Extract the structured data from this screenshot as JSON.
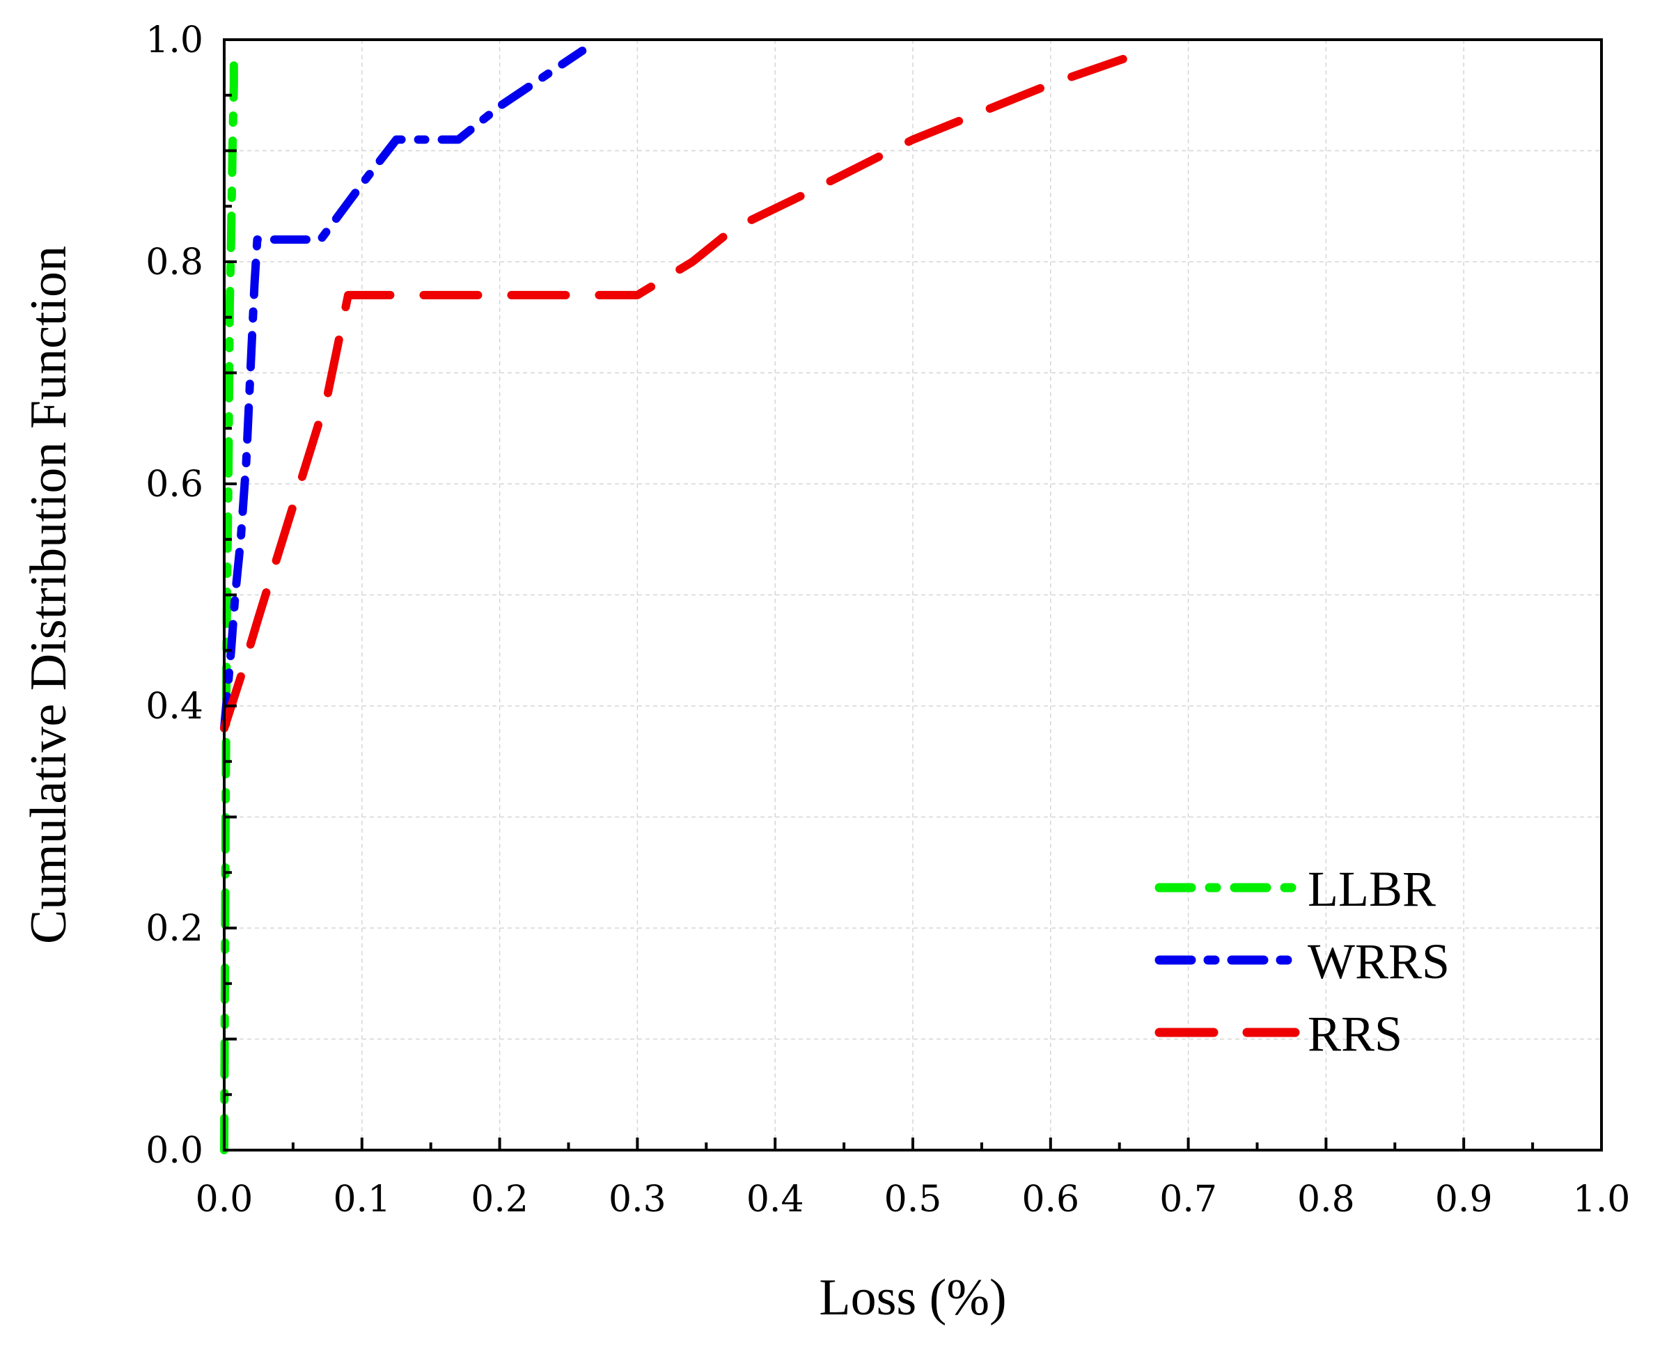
{
  "chart_data": {
    "type": "line",
    "title": "",
    "xlabel": "Loss (%)",
    "ylabel": "Cumulative Distribution Function",
    "xlim": [
      0.0,
      1.0
    ],
    "ylim": [
      0.0,
      1.0
    ],
    "x_ticks": [
      "0.0",
      "0.1",
      "0.2",
      "0.3",
      "0.4",
      "0.5",
      "0.6",
      "0.7",
      "0.8",
      "0.9",
      "1.0"
    ],
    "y_ticks": [
      "0.0",
      "0.2",
      "0.4",
      "0.6",
      "0.8",
      "1.0"
    ],
    "grid": true,
    "legend_position": "bottom-right",
    "series": [
      {
        "name": "LLBR",
        "color": "#00ee00",
        "style": "dash-dot-sparse",
        "points": [
          [
            0.0,
            0.0
          ],
          [
            0.001,
            0.3
          ],
          [
            0.002,
            0.5
          ],
          [
            0.003,
            0.6
          ],
          [
            0.004,
            0.76
          ],
          [
            0.005,
            0.82
          ],
          [
            0.006,
            0.9
          ],
          [
            0.007,
            0.96
          ],
          [
            0.007,
            0.99
          ]
        ]
      },
      {
        "name": "WRRS",
        "color": "#0000ee",
        "style": "dash-dot",
        "points": [
          [
            0.0,
            0.38
          ],
          [
            0.005,
            0.45
          ],
          [
            0.008,
            0.5
          ],
          [
            0.012,
            0.55
          ],
          [
            0.016,
            0.62
          ],
          [
            0.019,
            0.7
          ],
          [
            0.022,
            0.78
          ],
          [
            0.024,
            0.82
          ],
          [
            0.07,
            0.82
          ],
          [
            0.1,
            0.87
          ],
          [
            0.125,
            0.91
          ],
          [
            0.17,
            0.91
          ],
          [
            0.2,
            0.94
          ],
          [
            0.26,
            0.99
          ]
        ]
      },
      {
        "name": "RRS",
        "color": "#ee0000",
        "style": "dashed",
        "points": [
          [
            0.0,
            0.38
          ],
          [
            0.013,
            0.43
          ],
          [
            0.025,
            0.48
          ],
          [
            0.05,
            0.58
          ],
          [
            0.075,
            0.68
          ],
          [
            0.09,
            0.77
          ],
          [
            0.3,
            0.77
          ],
          [
            0.34,
            0.8
          ],
          [
            0.37,
            0.83
          ],
          [
            0.42,
            0.86
          ],
          [
            0.5,
            0.91
          ],
          [
            0.56,
            0.94
          ],
          [
            0.6,
            0.96
          ],
          [
            0.67,
            0.99
          ]
        ]
      }
    ]
  }
}
